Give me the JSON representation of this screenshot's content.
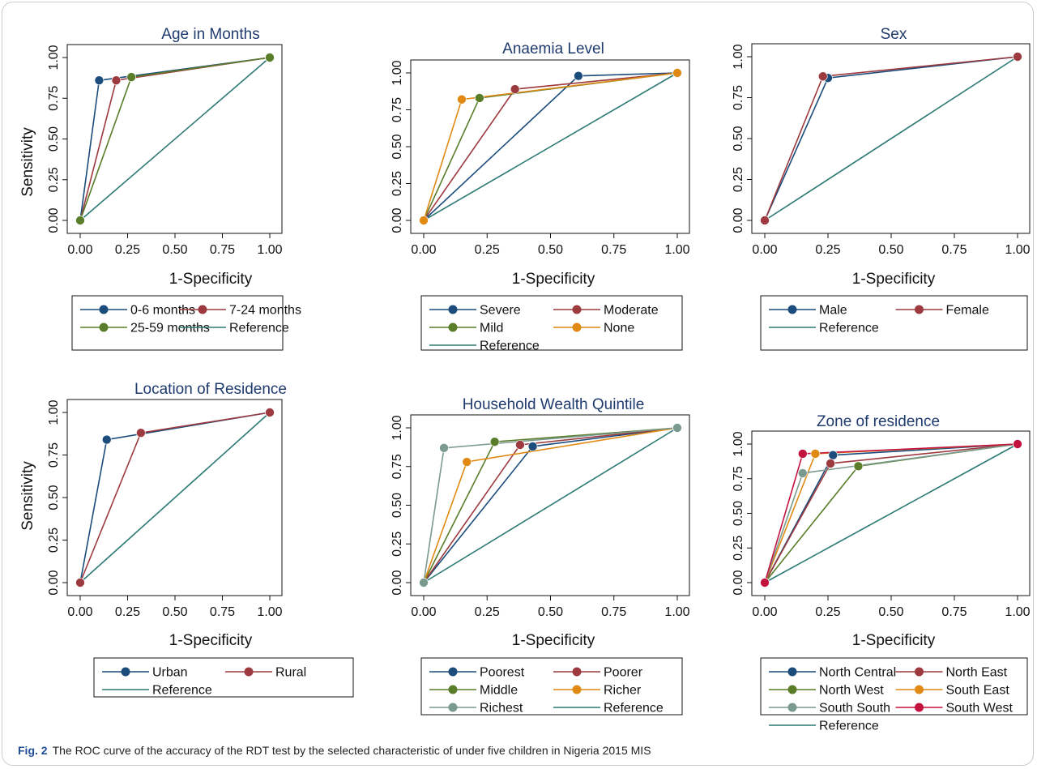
{
  "caption": {
    "label": "Fig. 2",
    "text": "The ROC curve of the accuracy of the RDT test by the selected characteristic of under five children in Nigeria 2015 MIS"
  },
  "chart_data": [
    {
      "type": "line",
      "title": "Age in Months",
      "xlabel": "1-Specificity",
      "ylabel": "Sensitivity",
      "xlim": [
        0,
        1
      ],
      "ylim": [
        0,
        1
      ],
      "xticks": [
        "0.00",
        "0.25",
        "0.50",
        "0.75",
        "1.00"
      ],
      "yticks": [
        "0.00",
        "0.25",
        "0.50",
        "0.75",
        "1.00"
      ],
      "legend_columns": 2,
      "series": [
        {
          "name": "0-6 months",
          "color": "#1b4c7c",
          "marker": true,
          "x": [
            0,
            0.1,
            1
          ],
          "y": [
            0,
            0.86,
            1
          ]
        },
        {
          "name": "7-24 months",
          "color": "#9c3a3f",
          "marker": true,
          "x": [
            0,
            0.19,
            1
          ],
          "y": [
            0,
            0.86,
            1
          ]
        },
        {
          "name": "25-59 months",
          "color": "#5a7d2a",
          "marker": true,
          "x": [
            0,
            0.27,
            1
          ],
          "y": [
            0,
            0.88,
            1
          ]
        },
        {
          "name": "Reference",
          "color": "#2c7a73",
          "marker": false,
          "x": [
            0,
            1
          ],
          "y": [
            0,
            1
          ]
        }
      ]
    },
    {
      "type": "line",
      "title": "Anaemia Level",
      "xlabel": "1-Specificity",
      "ylabel": "",
      "xlim": [
        0,
        1
      ],
      "ylim": [
        0,
        1
      ],
      "xticks": [
        "0.00",
        "0.25",
        "0.50",
        "0.75",
        "1.00"
      ],
      "yticks": [
        "0.00",
        "0.25",
        "0.50",
        "0.75",
        "1.00"
      ],
      "legend_columns": 2,
      "series": [
        {
          "name": "Severe",
          "color": "#1b4c7c",
          "marker": true,
          "x": [
            0,
            0.61,
            1
          ],
          "y": [
            0,
            0.98,
            1
          ]
        },
        {
          "name": "Moderate",
          "color": "#9c3a3f",
          "marker": true,
          "x": [
            0,
            0.36,
            1
          ],
          "y": [
            0,
            0.89,
            1
          ]
        },
        {
          "name": "Mild",
          "color": "#5a7d2a",
          "marker": true,
          "x": [
            0,
            0.22,
            1
          ],
          "y": [
            0,
            0.83,
            1
          ]
        },
        {
          "name": "None",
          "color": "#e08a14",
          "marker": true,
          "x": [
            0,
            0.15,
            1
          ],
          "y": [
            0,
            0.82,
            1
          ]
        },
        {
          "name": "Reference",
          "color": "#2c7a73",
          "marker": false,
          "x": [
            0,
            1
          ],
          "y": [
            0,
            1
          ]
        }
      ]
    },
    {
      "type": "line",
      "title": "Sex",
      "xlabel": "1-Specificity",
      "ylabel": "",
      "xlim": [
        0,
        1
      ],
      "ylim": [
        0,
        1
      ],
      "xticks": [
        "0.00",
        "0.25",
        "0.50",
        "0.75",
        "1.00"
      ],
      "yticks": [
        "0.00",
        "0.25",
        "0.50",
        "0.75",
        "1.00"
      ],
      "legend_columns": 2,
      "series": [
        {
          "name": "Male",
          "color": "#1b4c7c",
          "marker": true,
          "x": [
            0,
            0.25,
            1
          ],
          "y": [
            0,
            0.87,
            1
          ]
        },
        {
          "name": "Female",
          "color": "#9c3a3f",
          "marker": true,
          "x": [
            0,
            0.23,
            1
          ],
          "y": [
            0,
            0.88,
            1
          ]
        },
        {
          "name": "Reference",
          "color": "#2c7a73",
          "marker": false,
          "x": [
            0,
            1
          ],
          "y": [
            0,
            1
          ]
        }
      ]
    },
    {
      "type": "line",
      "title": "Location of Residence",
      "xlabel": "1-Specificity",
      "ylabel": "Sensitivity",
      "xlim": [
        0,
        1
      ],
      "ylim": [
        0,
        1
      ],
      "xticks": [
        "0.00",
        "0.25",
        "0.50",
        "0.75",
        "1.00"
      ],
      "yticks": [
        "0.00",
        "0.25",
        "0.50",
        "0.75",
        "1.00"
      ],
      "legend_columns": 2,
      "series": [
        {
          "name": "Urban",
          "color": "#1b4c7c",
          "marker": true,
          "x": [
            0,
            0.14,
            1
          ],
          "y": [
            0,
            0.84,
            1
          ]
        },
        {
          "name": "Rural",
          "color": "#9c3a3f",
          "marker": true,
          "x": [
            0,
            0.32,
            1
          ],
          "y": [
            0,
            0.88,
            1
          ]
        },
        {
          "name": "Reference",
          "color": "#2c7a73",
          "marker": false,
          "x": [
            0,
            1
          ],
          "y": [
            0,
            1
          ]
        }
      ]
    },
    {
      "type": "line",
      "title": "Household Wealth Quintile",
      "xlabel": "1-Specificity",
      "ylabel": "",
      "xlim": [
        0,
        1
      ],
      "ylim": [
        0,
        1
      ],
      "xticks": [
        "0.00",
        "0.25",
        "0.50",
        "0.75",
        "1.00"
      ],
      "yticks": [
        "0.00",
        "0.25",
        "0.50",
        "0.75",
        "1.00"
      ],
      "legend_columns": 2,
      "series": [
        {
          "name": "Poorest",
          "color": "#1b4c7c",
          "marker": true,
          "x": [
            0,
            0.43,
            1
          ],
          "y": [
            0,
            0.88,
            1
          ]
        },
        {
          "name": "Poorer",
          "color": "#9c3a3f",
          "marker": true,
          "x": [
            0,
            0.38,
            1
          ],
          "y": [
            0,
            0.89,
            1
          ]
        },
        {
          "name": "Middle",
          "color": "#5a7d2a",
          "marker": true,
          "x": [
            0,
            0.28,
            1
          ],
          "y": [
            0,
            0.91,
            1
          ]
        },
        {
          "name": "Richer",
          "color": "#e08a14",
          "marker": true,
          "x": [
            0,
            0.17,
            1
          ],
          "y": [
            0,
            0.78,
            1
          ]
        },
        {
          "name": "Richest",
          "color": "#7a9a8e",
          "marker": true,
          "x": [
            0,
            0.08,
            1
          ],
          "y": [
            0,
            0.87,
            1
          ]
        },
        {
          "name": "Reference",
          "color": "#2c7a73",
          "marker": false,
          "x": [
            0,
            1
          ],
          "y": [
            0,
            1
          ]
        }
      ]
    },
    {
      "type": "line",
      "title": "Zone of residence",
      "xlabel": "1-Specificity",
      "ylabel": "",
      "xlim": [
        0,
        1
      ],
      "ylim": [
        0,
        1
      ],
      "xticks": [
        "0.00",
        "0.25",
        "0.50",
        "0.75",
        "1.00"
      ],
      "yticks": [
        "0.00",
        "0.25",
        "0.50",
        "0.75",
        "1.00"
      ],
      "legend_columns": 2,
      "series": [
        {
          "name": "North Central",
          "color": "#1b4c7c",
          "marker": true,
          "x": [
            0,
            0.27,
            1
          ],
          "y": [
            0,
            0.92,
            1
          ]
        },
        {
          "name": "North East",
          "color": "#9c3a3f",
          "marker": true,
          "x": [
            0,
            0.26,
            1
          ],
          "y": [
            0,
            0.86,
            1
          ]
        },
        {
          "name": "North West",
          "color": "#5a7d2a",
          "marker": true,
          "x": [
            0,
            0.37,
            1
          ],
          "y": [
            0,
            0.84,
            1
          ]
        },
        {
          "name": "South East",
          "color": "#e08a14",
          "marker": true,
          "x": [
            0,
            0.2,
            1
          ],
          "y": [
            0,
            0.93,
            1
          ]
        },
        {
          "name": "South South",
          "color": "#7a9a8e",
          "marker": true,
          "x": [
            0,
            0.15,
            1
          ],
          "y": [
            0,
            0.79,
            1
          ]
        },
        {
          "name": "South West",
          "color": "#c4123f",
          "marker": true,
          "x": [
            0,
            0.15,
            1
          ],
          "y": [
            0,
            0.93,
            1
          ]
        },
        {
          "name": "Reference",
          "color": "#2c7a73",
          "marker": false,
          "x": [
            0,
            1
          ],
          "y": [
            0,
            1
          ]
        }
      ]
    }
  ]
}
